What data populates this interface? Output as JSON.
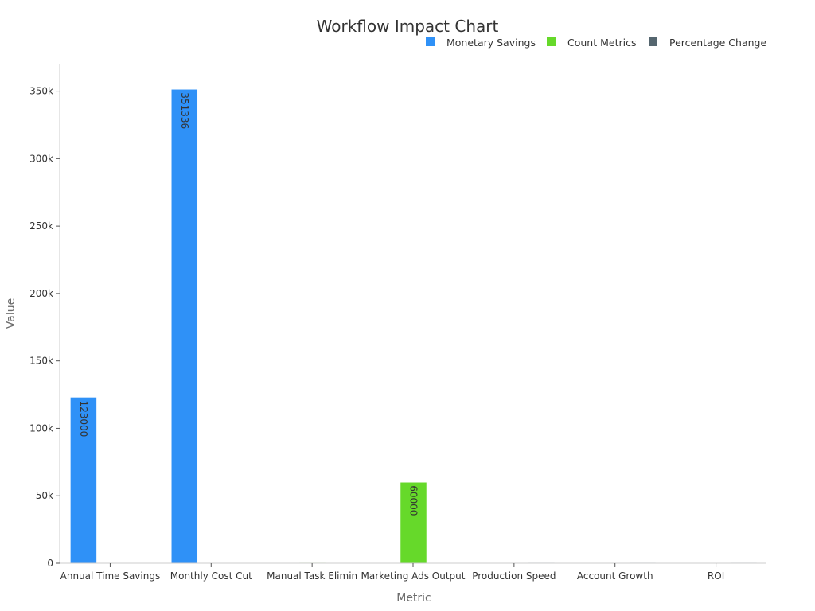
{
  "chart_data": {
    "type": "bar",
    "title": "Workflow Impact Chart",
    "xlabel": "Metric",
    "ylabel": "Value",
    "ylim": [
      0,
      370000
    ],
    "yticks": [
      0,
      50000,
      100000,
      150000,
      200000,
      250000,
      300000,
      350000
    ],
    "ytick_labels": [
      "0",
      "50k",
      "100k",
      "150k",
      "200k",
      "250k",
      "300k",
      "350k"
    ],
    "categories": [
      "Annual Time Savings",
      "Monthly Cost Cut",
      "Manual Task Elimin",
      "Marketing Ads Output",
      "Production Speed",
      "Account Growth",
      "ROI"
    ],
    "series": [
      {
        "name": "Monetary Savings",
        "color": "#2f91f7",
        "values": [
          123000,
          351336,
          null,
          null,
          null,
          null,
          null
        ]
      },
      {
        "name": "Count Metrics",
        "color": "#66d92a",
        "values": [
          null,
          null,
          300,
          60000,
          null,
          null,
          null
        ]
      },
      {
        "name": "Percentage Change",
        "color": "#55666f",
        "values": [
          null,
          null,
          null,
          null,
          50,
          300,
          200
        ]
      }
    ],
    "data_labels": [
      "123000",
      "351336",
      "60000"
    ],
    "legend_position": "top-right",
    "grid": false
  }
}
